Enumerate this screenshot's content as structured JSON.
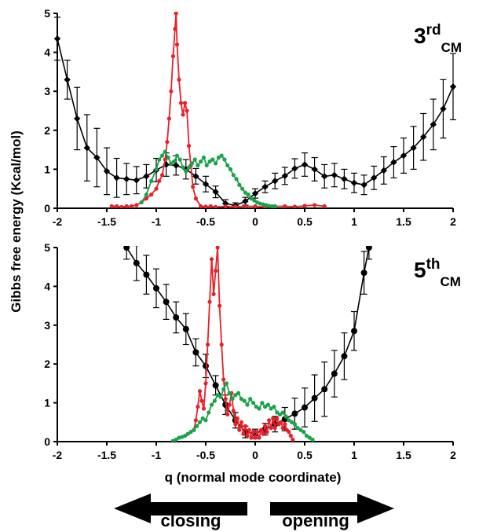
{
  "y_axis_title": "Gibbs free energy (Kcal/mol)",
  "x_axis_title": "q (normal mode coordinate)",
  "arrows": {
    "left_label": "closing",
    "right_label": "opening"
  },
  "colors": {
    "black": "#000000",
    "red": "#e8202a",
    "green": "#1aa34a"
  },
  "chart_data": [
    {
      "type": "line",
      "panel_label": "3",
      "panel_label_sup": "rd",
      "panel_label_sub": "CM",
      "xlim": [
        -2,
        2
      ],
      "ylim": [
        0,
        5
      ],
      "x_ticks": [
        "-2",
        "-1.5",
        "-1",
        "-0.5",
        "0",
        "0.5",
        "1",
        "1.5",
        "2"
      ],
      "y_ticks": [
        "0",
        "1",
        "2",
        "3",
        "4",
        "5"
      ],
      "series": [
        {
          "color": "black",
          "marker": "diamond",
          "x": [
            -2.0,
            -1.9,
            -1.8,
            -1.7,
            -1.6,
            -1.5,
            -1.4,
            -1.3,
            -1.2,
            -1.1,
            -1.0,
            -0.9,
            -0.8,
            -0.7,
            -0.6,
            -0.5,
            -0.4,
            -0.3,
            -0.2,
            -0.1,
            0.0,
            0.1,
            0.2,
            0.3,
            0.4,
            0.5,
            0.6,
            0.7,
            0.8,
            0.9,
            1.0,
            1.1,
            1.2,
            1.3,
            1.4,
            1.5,
            1.6,
            1.7,
            1.8,
            1.9,
            2.0
          ],
          "y": [
            4.35,
            3.3,
            2.3,
            1.55,
            1.3,
            0.95,
            0.78,
            0.75,
            0.72,
            0.82,
            0.98,
            1.12,
            1.1,
            1.0,
            0.82,
            0.62,
            0.42,
            0.12,
            0.07,
            0.18,
            0.38,
            0.55,
            0.7,
            0.83,
            1.02,
            1.12,
            1.0,
            0.82,
            0.85,
            0.75,
            0.65,
            0.6,
            0.78,
            0.97,
            1.18,
            1.35,
            1.55,
            1.83,
            2.15,
            2.55,
            3.12
          ],
          "err": [
            0.55,
            0.5,
            0.8,
            0.85,
            0.75,
            0.6,
            0.5,
            0.4,
            0.35,
            0.3,
            0.3,
            0.3,
            0.25,
            0.25,
            0.2,
            0.2,
            0.15,
            0.1,
            0.07,
            0.1,
            0.12,
            0.15,
            0.2,
            0.22,
            0.25,
            0.3,
            0.3,
            0.3,
            0.3,
            0.25,
            0.25,
            0.25,
            0.3,
            0.35,
            0.4,
            0.45,
            0.55,
            0.6,
            0.65,
            0.75,
            0.85
          ]
        },
        {
          "color": "red",
          "marker": "circle",
          "x": [
            -1.45,
            -1.4,
            -1.35,
            -1.3,
            -1.25,
            -1.2,
            -1.15,
            -1.1,
            -1.05,
            -1.0,
            -0.97,
            -0.94,
            -0.91,
            -0.89,
            -0.87,
            -0.85,
            -0.83,
            -0.81,
            -0.8,
            -0.79,
            -0.77,
            -0.75,
            -0.73,
            -0.71,
            -0.69,
            -0.67,
            -0.65,
            -0.63,
            -0.6,
            -0.55,
            -0.5,
            -0.45,
            -0.4,
            -0.3,
            -0.2,
            -0.1,
            0.0,
            0.1,
            0.2,
            0.3,
            0.4,
            0.5,
            0.6,
            0.7
          ],
          "y": [
            0.05,
            0.05,
            0.03,
            0.05,
            0.05,
            0.08,
            0.15,
            0.25,
            0.35,
            0.5,
            0.7,
            0.85,
            1.25,
            1.7,
            2.3,
            3.0,
            3.9,
            4.6,
            5.0,
            4.2,
            3.3,
            2.7,
            2.4,
            2.7,
            2.5,
            1.6,
            1.1,
            0.55,
            0.25,
            0.05,
            0.04,
            0.05,
            0.03,
            0.05,
            0.04,
            0.05,
            0.05,
            0.03,
            0.05,
            0.05,
            0.04,
            0.06,
            0.08,
            0.05
          ]
        },
        {
          "color": "green",
          "marker": "circle",
          "x": [
            -1.15,
            -1.1,
            -1.05,
            -1.0,
            -0.97,
            -0.94,
            -0.91,
            -0.88,
            -0.85,
            -0.82,
            -0.79,
            -0.76,
            -0.73,
            -0.7,
            -0.67,
            -0.64,
            -0.61,
            -0.58,
            -0.55,
            -0.52,
            -0.49,
            -0.46,
            -0.43,
            -0.4,
            -0.37,
            -0.34,
            -0.31,
            -0.28,
            -0.25,
            -0.22,
            -0.19,
            -0.16,
            -0.13,
            -0.1,
            -0.07,
            -0.04,
            -0.01,
            0.02,
            0.05,
            0.08,
            0.11,
            0.14,
            0.17,
            0.2
          ],
          "y": [
            0.15,
            0.35,
            0.7,
            1.0,
            1.25,
            1.35,
            1.45,
            1.3,
            1.15,
            1.2,
            1.35,
            1.25,
            1.05,
            0.95,
            1.05,
            1.15,
            1.25,
            1.1,
            1.2,
            1.3,
            1.1,
            1.2,
            1.25,
            1.15,
            1.3,
            1.35,
            1.25,
            1.1,
            1.0,
            0.85,
            0.75,
            0.6,
            0.5,
            0.4,
            0.35,
            0.25,
            0.2,
            0.15,
            0.12,
            0.1,
            0.08,
            0.06,
            0.05,
            0.05
          ]
        }
      ]
    },
    {
      "type": "line",
      "panel_label": "5",
      "panel_label_sup": "th",
      "panel_label_sub": "CM",
      "xlim": [
        -2,
        2
      ],
      "ylim": [
        0,
        5
      ],
      "x_ticks": [
        "-2",
        "-1.5",
        "-1",
        "-0.5",
        "0",
        "0.5",
        "1",
        "1.5",
        "2"
      ],
      "y_ticks": [
        "0",
        "1",
        "2",
        "3",
        "4",
        "5"
      ],
      "series": [
        {
          "color": "black",
          "marker": "circle",
          "x": [
            -1.3,
            -1.2,
            -1.1,
            -1.0,
            -0.9,
            -0.8,
            -0.7,
            -0.6,
            -0.5,
            -0.4,
            -0.3,
            -0.2,
            -0.1,
            0.0,
            0.1,
            0.2,
            0.3,
            0.4,
            0.5,
            0.6,
            0.7,
            0.8,
            0.9,
            1.0,
            1.1,
            1.15
          ],
          "y": [
            5.0,
            4.6,
            4.3,
            3.95,
            3.6,
            3.2,
            2.9,
            2.3,
            1.95,
            1.45,
            0.95,
            0.55,
            0.25,
            0.2,
            0.32,
            0.45,
            0.58,
            0.72,
            0.88,
            1.12,
            1.35,
            1.75,
            2.2,
            2.85,
            4.35,
            5.0
          ],
          "err": [
            0.3,
            0.45,
            0.5,
            0.5,
            0.45,
            0.4,
            0.4,
            0.35,
            0.3,
            0.25,
            0.25,
            0.2,
            0.15,
            0.12,
            0.15,
            0.2,
            0.3,
            0.4,
            0.5,
            0.6,
            0.7,
            0.6,
            0.6,
            0.5,
            0.55,
            0.3
          ]
        },
        {
          "color": "red",
          "marker": "circle",
          "x": [
            -0.62,
            -0.6,
            -0.58,
            -0.56,
            -0.54,
            -0.52,
            -0.5,
            -0.48,
            -0.46,
            -0.44,
            -0.42,
            -0.4,
            -0.38,
            -0.36,
            -0.34,
            -0.32,
            -0.3,
            -0.28,
            -0.26,
            -0.24,
            -0.22,
            -0.2,
            -0.18,
            -0.16,
            -0.14,
            -0.12,
            -0.1,
            -0.08,
            -0.06,
            -0.04,
            -0.02,
            0.0,
            0.02,
            0.04,
            0.06,
            0.08,
            0.1,
            0.12,
            0.14,
            0.16,
            0.18,
            0.2,
            0.22,
            0.24,
            0.26,
            0.28,
            0.3,
            0.32,
            0.34,
            0.36,
            0.38
          ],
          "y": [
            0.3,
            0.55,
            0.9,
            1.3,
            1.05,
            0.85,
            1.5,
            2.5,
            3.6,
            4.7,
            3.8,
            4.4,
            5.0,
            3.5,
            2.5,
            1.6,
            1.1,
            0.7,
            0.95,
            1.25,
            0.8,
            0.45,
            0.6,
            0.3,
            0.5,
            0.2,
            0.4,
            0.15,
            0.3,
            0.1,
            0.25,
            0.1,
            0.25,
            0.1,
            0.3,
            0.2,
            0.4,
            0.25,
            0.55,
            0.35,
            0.6,
            0.35,
            0.6,
            0.45,
            0.5,
            0.35,
            0.45,
            0.3,
            0.25,
            0.15,
            0.05
          ]
        },
        {
          "color": "green",
          "marker": "circle",
          "x": [
            -0.83,
            -0.8,
            -0.77,
            -0.74,
            -0.71,
            -0.68,
            -0.65,
            -0.62,
            -0.59,
            -0.56,
            -0.53,
            -0.5,
            -0.47,
            -0.44,
            -0.41,
            -0.38,
            -0.35,
            -0.32,
            -0.29,
            -0.26,
            -0.23,
            -0.2,
            -0.17,
            -0.14,
            -0.11,
            -0.08,
            -0.05,
            -0.02,
            0.01,
            0.04,
            0.07,
            0.1,
            0.13,
            0.16,
            0.19,
            0.22,
            0.25,
            0.28,
            0.31,
            0.34,
            0.37,
            0.4,
            0.43,
            0.46,
            0.49,
            0.52,
            0.55,
            0.58
          ],
          "y": [
            0.02,
            0.05,
            0.1,
            0.12,
            0.15,
            0.2,
            0.25,
            0.3,
            0.4,
            0.5,
            0.6,
            0.55,
            0.75,
            0.95,
            1.05,
            1.2,
            1.15,
            1.35,
            1.5,
            1.25,
            1.1,
            1.2,
            1.25,
            1.1,
            1.05,
            0.95,
            1.1,
            1.0,
            0.9,
            0.85,
            1.0,
            0.9,
            0.95,
            0.85,
            0.9,
            0.75,
            0.7,
            0.75,
            0.65,
            0.55,
            0.5,
            0.45,
            0.35,
            0.3,
            0.25,
            0.15,
            0.1,
            0.05
          ]
        }
      ]
    }
  ]
}
